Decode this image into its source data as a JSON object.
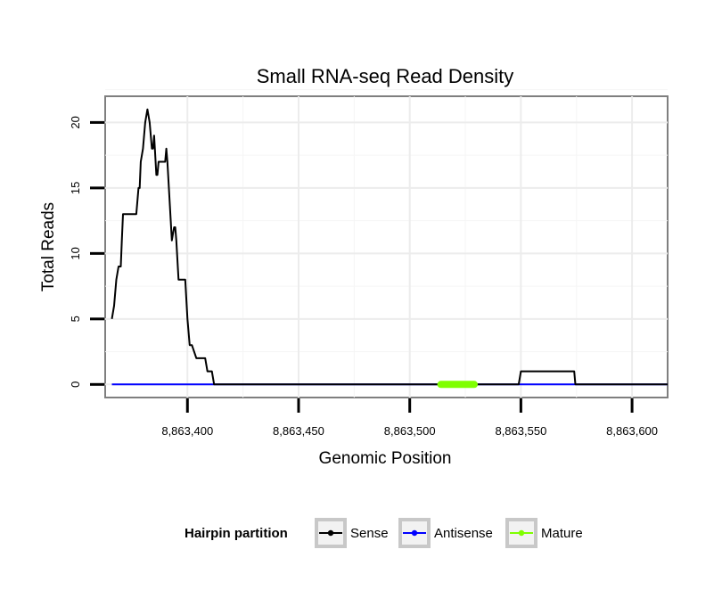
{
  "chart_data": {
    "type": "line",
    "title": "Small RNA-seq Read Density",
    "xlabel": "Genomic Position",
    "ylabel": "Total Reads",
    "xlim": [
      8863363,
      8863616
    ],
    "ylim": [
      -1,
      22
    ],
    "xticks": [
      8863400,
      8863450,
      8863500,
      8863550,
      8863600
    ],
    "xtick_labels": [
      "8,863,400",
      "8,863,450",
      "8,863,500",
      "8,863,550",
      "8,863,600"
    ],
    "yticks": [
      0,
      5,
      10,
      15,
      20
    ],
    "ytick_labels": [
      "0",
      "5",
      "10",
      "15",
      "20"
    ],
    "grid": true,
    "legend": {
      "title": "Hairpin partition",
      "position": "bottom",
      "entries": [
        "Sense",
        "Antisense",
        "Mature"
      ]
    },
    "series": [
      {
        "name": "Antisense",
        "color": "#0000ff",
        "x": [
          8863366,
          8863616
        ],
        "y": [
          0,
          0
        ]
      },
      {
        "name": "Sense",
        "color": "#000000",
        "x": [
          8863366,
          8863367,
          8863368,
          8863369,
          8863370,
          8863370.5,
          8863371,
          8863377,
          8863378,
          8863378.5,
          8863379,
          8863380,
          8863381,
          8863382,
          8863383,
          8863384,
          8863384.5,
          8863385,
          8863386,
          8863386.5,
          8863387,
          8863388,
          8863389,
          8863390,
          8863390.5,
          8863391,
          8863392,
          8863393,
          8863394,
          8863394.5,
          8863395,
          8863396,
          8863397,
          8863399,
          8863400,
          8863401,
          8863401.5,
          8863402,
          8863404,
          8863404.5,
          8863405,
          8863406,
          8863407,
          8863408,
          8863409,
          8863410,
          8863411,
          8863412,
          8863413,
          8863414,
          8863415,
          8863416,
          8863416.5,
          8863417,
          8863549,
          8863550,
          8863574,
          8863574.5,
          8863575,
          8863616
        ],
        "y": [
          5,
          6,
          8,
          9,
          9,
          11,
          13,
          13,
          15,
          15,
          17,
          18,
          20,
          21,
          20,
          18,
          18,
          19,
          16,
          16,
          17,
          17,
          17,
          17,
          18,
          17,
          14,
          11,
          12,
          12,
          11,
          8,
          8,
          8,
          5,
          3,
          3,
          3,
          2,
          2,
          2,
          2,
          2,
          2,
          1,
          1,
          1,
          0,
          0,
          0,
          0,
          0,
          0,
          0,
          0,
          1,
          1,
          0,
          0,
          0
        ]
      },
      {
        "name": "Mature",
        "color": "#7fff00",
        "x": [
          8863514,
          8863529
        ],
        "y": [
          0,
          0
        ]
      }
    ]
  }
}
